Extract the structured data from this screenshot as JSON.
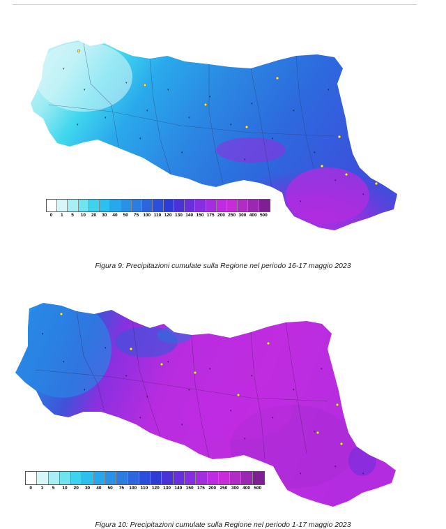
{
  "legend": {
    "ticks": [
      "0",
      "1",
      "5",
      "10",
      "20",
      "30",
      "40",
      "50",
      "75",
      "100",
      "110",
      "120",
      "130",
      "140",
      "150",
      "175",
      "200",
      "250",
      "300",
      "400",
      "500"
    ],
    "colors": [
      "#ffffff",
      "#d6f6f8",
      "#a8eef4",
      "#6fe3f0",
      "#3dd3ee",
      "#2cc0ee",
      "#28a8ec",
      "#2a92e6",
      "#2b7ee0",
      "#2d66dc",
      "#2c4edc",
      "#2f3bd6",
      "#4a32d8",
      "#6a2fdc",
      "#872fe0",
      "#a22ee0",
      "#bd2ce0",
      "#c82bd8",
      "#b02cc4",
      "#9a28b0",
      "#7e1f94"
    ]
  },
  "figures": [
    {
      "id": "fig9",
      "caption": "Figura 9: Precipitazioni cumulate sulla Regione nel periodo 16-17 maggio 2023"
    },
    {
      "id": "fig10",
      "caption": "Figura 10: Precipitazioni cumulate sulla Regione nel periodo 1-17 maggio 2023"
    }
  ]
}
